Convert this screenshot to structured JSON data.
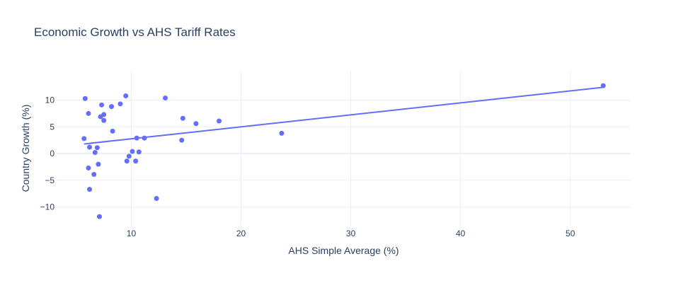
{
  "chart_data": {
    "type": "scatter",
    "title": "Economic Growth vs AHS Tariff Rates",
    "xlabel": "AHS Simple Average (%)",
    "ylabel": "Country Growth (%)",
    "xlim": [
      3.2,
      55.5
    ],
    "ylim": [
      -13.5,
      15.5
    ],
    "x_ticks": [
      10,
      20,
      30,
      40,
      50
    ],
    "y_ticks": [
      -10,
      -5,
      0,
      5,
      10
    ],
    "grid": true,
    "legend": "none",
    "colors": {
      "marker": "#636efa",
      "trendline": "#636efa"
    },
    "points": [
      {
        "x": 5.8,
        "y": 10.3
      },
      {
        "x": 5.7,
        "y": 2.8
      },
      {
        "x": 6.1,
        "y": 7.5
      },
      {
        "x": 6.2,
        "y": 1.2
      },
      {
        "x": 6.1,
        "y": -2.7
      },
      {
        "x": 6.2,
        "y": -6.7
      },
      {
        "x": 6.6,
        "y": -3.9
      },
      {
        "x": 6.7,
        "y": 0.2
      },
      {
        "x": 6.9,
        "y": 1.1
      },
      {
        "x": 7.0,
        "y": -2.0
      },
      {
        "x": 7.1,
        "y": -11.8
      },
      {
        "x": 7.2,
        "y": 6.9
      },
      {
        "x": 7.3,
        "y": 9.1
      },
      {
        "x": 7.5,
        "y": 7.3
      },
      {
        "x": 7.5,
        "y": 6.2
      },
      {
        "x": 8.2,
        "y": 8.8
      },
      {
        "x": 8.3,
        "y": 4.2
      },
      {
        "x": 9.0,
        "y": 9.3
      },
      {
        "x": 9.5,
        "y": 10.8
      },
      {
        "x": 9.6,
        "y": -1.4
      },
      {
        "x": 9.8,
        "y": -0.5
      },
      {
        "x": 10.1,
        "y": 0.4
      },
      {
        "x": 10.4,
        "y": -1.4
      },
      {
        "x": 10.5,
        "y": 2.9
      },
      {
        "x": 10.7,
        "y": 0.3
      },
      {
        "x": 11.2,
        "y": 2.9
      },
      {
        "x": 12.3,
        "y": -8.4
      },
      {
        "x": 13.1,
        "y": 10.4
      },
      {
        "x": 14.6,
        "y": 2.5
      },
      {
        "x": 14.7,
        "y": 6.6
      },
      {
        "x": 15.9,
        "y": 5.6
      },
      {
        "x": 18.0,
        "y": 6.1
      },
      {
        "x": 23.7,
        "y": 3.8
      },
      {
        "x": 53.0,
        "y": 12.7
      }
    ],
    "trendline": {
      "x": [
        5.7,
        53.0
      ],
      "y": [
        1.8,
        12.4
      ]
    }
  }
}
